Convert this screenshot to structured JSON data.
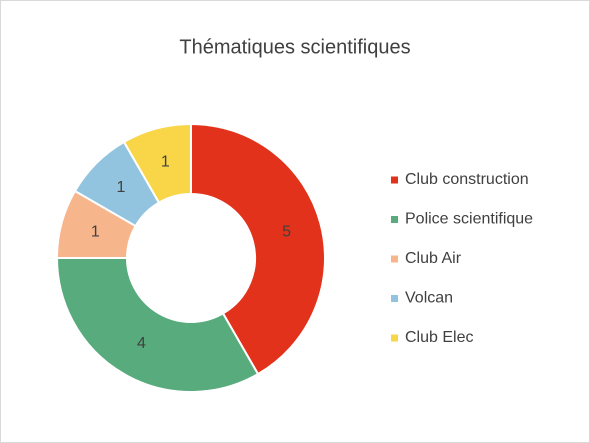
{
  "chart_data": {
    "type": "donut",
    "title": "Thématiques scientifiques",
    "categories": [
      "Club construction",
      "Police scientifique",
      "Club Air",
      "Volcan",
      "Club Elec"
    ],
    "values": [
      5,
      4,
      1,
      1,
      1
    ],
    "colors": [
      "#e3321b",
      "#58ab7c",
      "#f7b58c",
      "#92c4df",
      "#f8d647"
    ],
    "legend": "right"
  }
}
